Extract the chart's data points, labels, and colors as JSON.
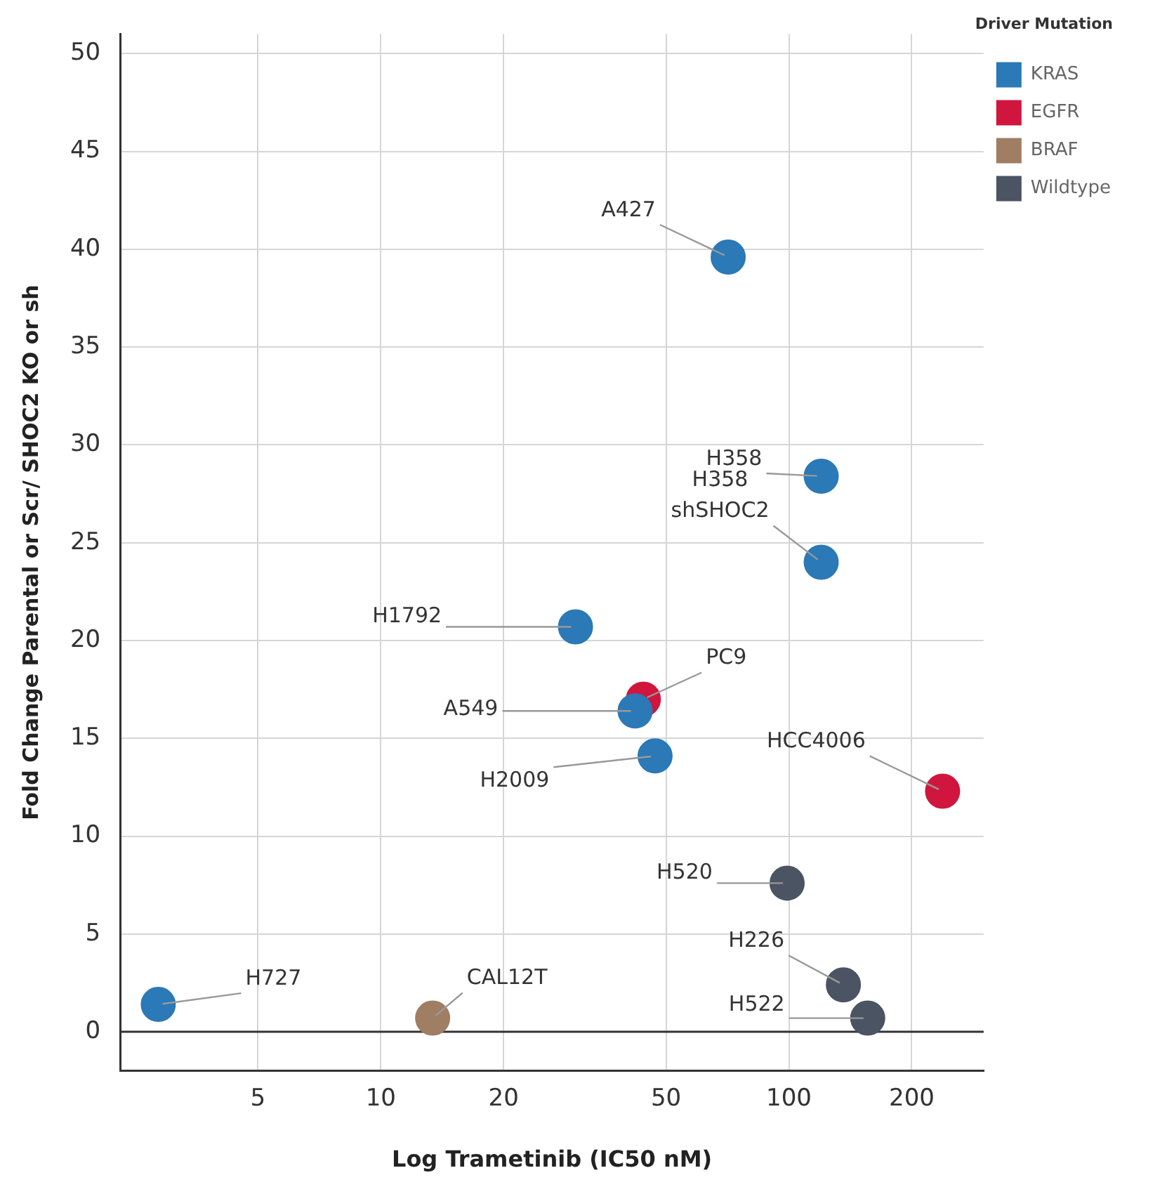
{
  "chart_data": {
    "type": "scatter",
    "xlabel": "Log Trametinib (IC50 nM)",
    "ylabel": "Fold Change Parental or Scr/ SHOC2 KO or sh",
    "legend_title": "Driver Mutation",
    "log": "x",
    "xlim": [
      2.3,
      300
    ],
    "xticks": [
      5,
      10,
      20,
      50,
      100,
      200
    ],
    "ylim": [
      -2,
      51
    ],
    "yticks": [
      0,
      5,
      10,
      15,
      20,
      25,
      30,
      35,
      40,
      45,
      50
    ],
    "grid": true,
    "legend": "right",
    "marker": "circle",
    "series": [
      {
        "name": "KRAS",
        "color": "#2b79b6",
        "x": [
          2.85,
          30,
          42,
          47,
          71,
          120,
          120
        ],
        "values": [
          1.4,
          20.7,
          16.4,
          14.1,
          39.6,
          28.4,
          24.0
        ]
      },
      {
        "name": "EGFR",
        "color": "#d0163e",
        "x": [
          44,
          238
        ],
        "values": [
          17.0,
          12.3
        ]
      },
      {
        "name": "BRAF",
        "color": "#a07e63",
        "x": [
          13.4
        ],
        "values": [
          0.7
        ]
      },
      {
        "name": "Wildtype",
        "color": "#4b5462",
        "x": [
          99,
          136,
          156
        ],
        "values": [
          7.6,
          2.4,
          0.7
        ]
      }
    ],
    "ref_lines": [
      {
        "axis": "y",
        "value": 0,
        "color": "#333333"
      }
    ],
    "annotations": [
      {
        "text": "A427",
        "x": 71,
        "y": 39.6
      },
      {
        "text": "H358",
        "x": 120,
        "y": 28.4
      },
      {
        "text": "H358 shSHOC2",
        "x": 120,
        "y": 24.0
      },
      {
        "text": "H1792",
        "x": 30,
        "y": 20.7
      },
      {
        "text": "PC9",
        "x": 44,
        "y": 17.0
      },
      {
        "text": "A549",
        "x": 42,
        "y": 16.4
      },
      {
        "text": "H2009",
        "x": 47,
        "y": 14.1
      },
      {
        "text": "HCC4006",
        "x": 238,
        "y": 12.3
      },
      {
        "text": "H520",
        "x": 99,
        "y": 7.6
      },
      {
        "text": "H226",
        "x": 136,
        "y": 2.4
      },
      {
        "text": "H522",
        "x": 156,
        "y": 0.7
      },
      {
        "text": "H727",
        "x": 2.85,
        "y": 1.4
      },
      {
        "text": "CAL12T",
        "x": 13.4,
        "y": 0.7
      }
    ]
  }
}
